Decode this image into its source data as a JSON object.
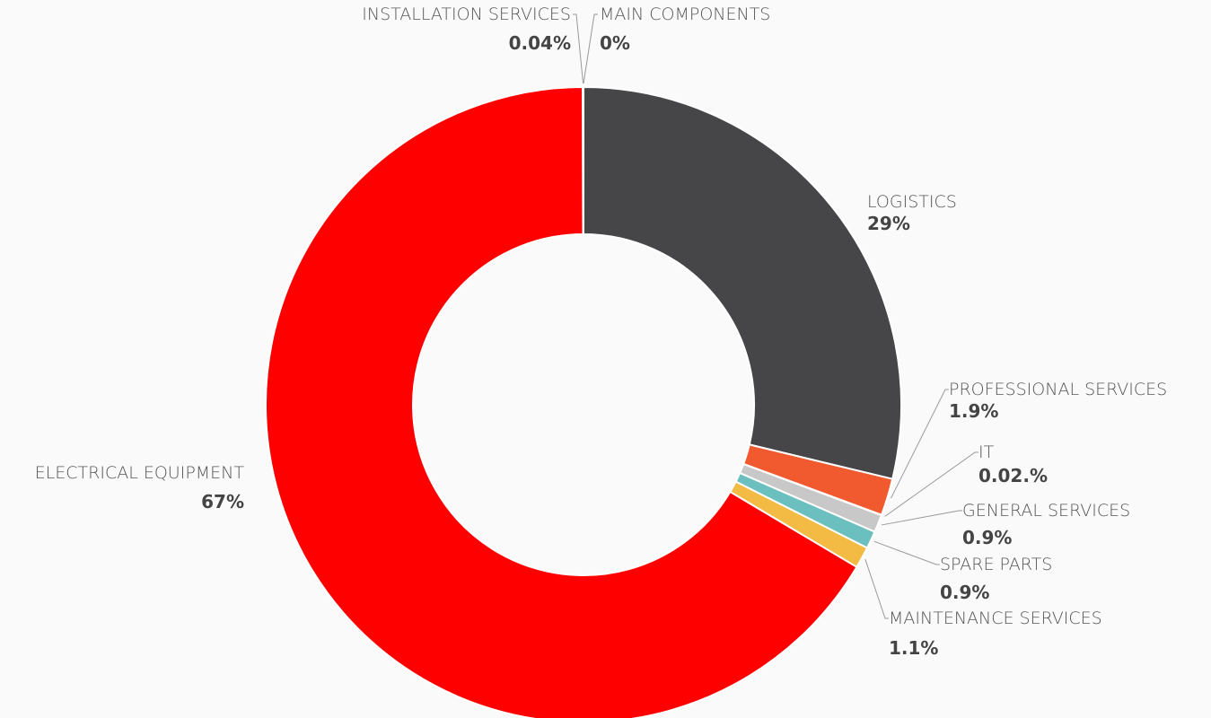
{
  "chart_data": {
    "type": "pie",
    "categories": [
      "MAIN COMPONENTS",
      "LOGISTICS",
      "PROFESSIONAL SERVICES",
      "IT",
      "GENERAL SERVICES",
      "SPARE PARTS",
      "MAINTENANCE SERVICES",
      "ELECTRICAL EQUIPMENT",
      "INSTALLATION SERVICES"
    ],
    "values": [
      0,
      29,
      1.9,
      0.02,
      0.9,
      0.9,
      1.1,
      67,
      0.04
    ],
    "value_labels": [
      "0%",
      "29%",
      "1.9%",
      "0.02.%",
      "0.9%",
      "0.9%",
      "1.1%",
      "67%",
      "0.04%"
    ],
    "colors": [
      "#2f4f5f",
      "#464648",
      "#f15a2e",
      "#9a9a9a",
      "#c8c8c8",
      "#6cbfbf",
      "#f4bb44",
      "#ff0000",
      "#1f3a4a"
    ]
  }
}
